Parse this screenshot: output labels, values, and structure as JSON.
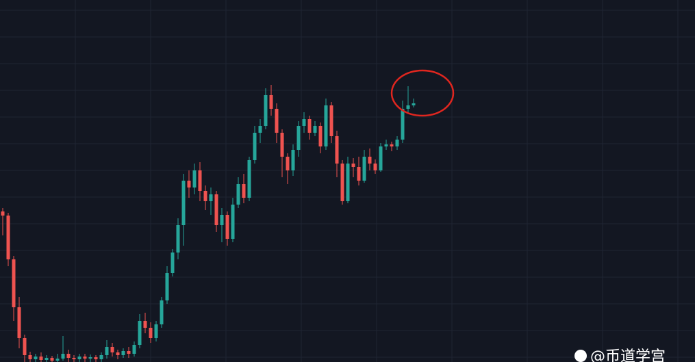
{
  "chart_data": {
    "type": "candlestick",
    "open": [
      220,
      214,
      150,
      80,
      35,
      10,
      4,
      8,
      3,
      6,
      2,
      5,
      12,
      6,
      4,
      8,
      5,
      7,
      4,
      10,
      22,
      14,
      10,
      16,
      12,
      25,
      60,
      50,
      35,
      55,
      90,
      130,
      160,
      200,
      265,
      255,
      280,
      250,
      235,
      245,
      200,
      215,
      180,
      230,
      260,
      240,
      295,
      335,
      345,
      390,
      370,
      335,
      300,
      280,
      310,
      345,
      355,
      335,
      345,
      315,
      375,
      330,
      290,
      235,
      290,
      285,
      265,
      300,
      290,
      280,
      315,
      318,
      315,
      325,
      370,
      375
    ],
    "high": [
      225,
      218,
      155,
      95,
      40,
      15,
      12,
      14,
      10,
      9,
      12,
      38,
      18,
      10,
      12,
      12,
      11,
      10,
      14,
      32,
      28,
      18,
      20,
      22,
      30,
      70,
      72,
      58,
      60,
      95,
      140,
      165,
      210,
      275,
      280,
      290,
      292,
      258,
      255,
      250,
      225,
      220,
      240,
      270,
      275,
      300,
      345,
      355,
      400,
      405,
      378,
      340,
      305,
      318,
      352,
      365,
      360,
      352,
      350,
      385,
      380,
      338,
      295,
      300,
      298,
      300,
      310,
      312,
      296,
      320,
      325,
      322,
      330,
      382,
      403,
      385
    ],
    "low": [
      185,
      140,
      60,
      20,
      0,
      0,
      0,
      0,
      0,
      0,
      0,
      2,
      0,
      0,
      0,
      0,
      0,
      0,
      0,
      5,
      8,
      4,
      6,
      6,
      8,
      20,
      42,
      28,
      30,
      50,
      85,
      125,
      150,
      170,
      240,
      245,
      235,
      222,
      215,
      190,
      175,
      170,
      175,
      225,
      232,
      235,
      290,
      320,
      340,
      360,
      320,
      270,
      260,
      272,
      300,
      335,
      325,
      330,
      305,
      310,
      320,
      270,
      230,
      232,
      270,
      258,
      262,
      280,
      275,
      278,
      310,
      308,
      310,
      320,
      365,
      372
    ],
    "close": [
      214,
      150,
      80,
      35,
      10,
      4,
      8,
      3,
      6,
      2,
      5,
      12,
      6,
      4,
      8,
      5,
      7,
      4,
      10,
      22,
      14,
      10,
      16,
      12,
      25,
      60,
      50,
      35,
      55,
      90,
      130,
      160,
      200,
      265,
      255,
      280,
      250,
      235,
      245,
      200,
      215,
      180,
      230,
      260,
      240,
      295,
      335,
      345,
      390,
      370,
      335,
      300,
      280,
      310,
      345,
      355,
      335,
      345,
      315,
      375,
      330,
      290,
      235,
      290,
      285,
      265,
      300,
      290,
      280,
      315,
      318,
      315,
      325,
      370,
      375,
      378
    ],
    "ylim": [
      0,
      529
    ],
    "up_color": "#26a69a",
    "down_color": "#ef5350",
    "grid": true
  },
  "watermark": "@币道学宫"
}
